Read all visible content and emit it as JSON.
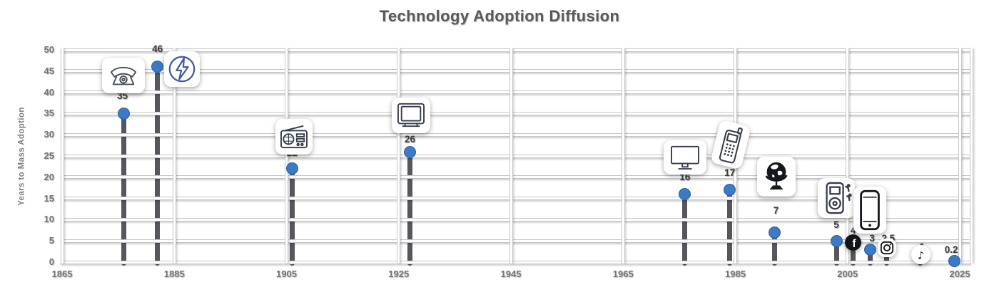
{
  "title": "Technology Adoption Diffusion",
  "colors": {
    "dot_blue": "#3b7ac4",
    "stem_gray": "#55575c",
    "title_gray": "#595959",
    "tick_gray": "#757575",
    "icon_dark": "#363c4a",
    "telephone_gray": "#4a4e57",
    "electricity_blue": "#4a5aa0",
    "globe_black": "#15181f"
  },
  "chart_data": {
    "type": "scatter",
    "title": "Technology Adoption Diffusion",
    "xlabel": "",
    "ylabel": "Years to Mass Adoption",
    "xlim": [
      1863,
      2027
    ],
    "ylim": [
      0,
      50
    ],
    "grid": true,
    "legend": "none",
    "x_ticks": [
      "1865",
      "1885",
      "1905",
      "1925",
      "1945",
      "1965",
      "1985",
      "2005",
      "2025"
    ],
    "y_ticks": [
      "0",
      "5",
      "10",
      "15",
      "20",
      "25",
      "30",
      "35",
      "40",
      "45",
      "50"
    ],
    "points": [
      {
        "icon": "telephone-icon",
        "year": 1876,
        "value": 35,
        "label": "35"
      },
      {
        "icon": "electricity-icon",
        "year": 1882,
        "value": 46,
        "label": "46"
      },
      {
        "icon": "radio-icon",
        "year": 1906,
        "value": 22,
        "label": "22"
      },
      {
        "icon": "television-icon",
        "year": 1927,
        "value": 26,
        "label": "26"
      },
      {
        "icon": "computer-icon",
        "year": 1976,
        "value": 16,
        "label": "16"
      },
      {
        "icon": "mobile-phone-icon",
        "year": 1984,
        "value": 17,
        "label": "17"
      },
      {
        "icon": "globe-icon",
        "year": 1992,
        "value": 7,
        "label": "7"
      },
      {
        "icon": "mp3-player-icon",
        "year": 2003,
        "value": 5,
        "label": "5"
      },
      {
        "icon": "facebook-icon",
        "year": 2006,
        "value": 4,
        "label": "4"
      },
      {
        "icon": "smartphone-icon",
        "year": 2009,
        "value": 3,
        "label": "3"
      },
      {
        "icon": "instagram-icon",
        "year": 2012,
        "value": 2.5,
        "label": "2.5"
      },
      {
        "icon": "tiktok-icon",
        "year": 2018,
        "value": 1,
        "label": "1"
      },
      {
        "icon": null,
        "year": 2024,
        "value": 0.2,
        "label": "0.2"
      }
    ]
  }
}
